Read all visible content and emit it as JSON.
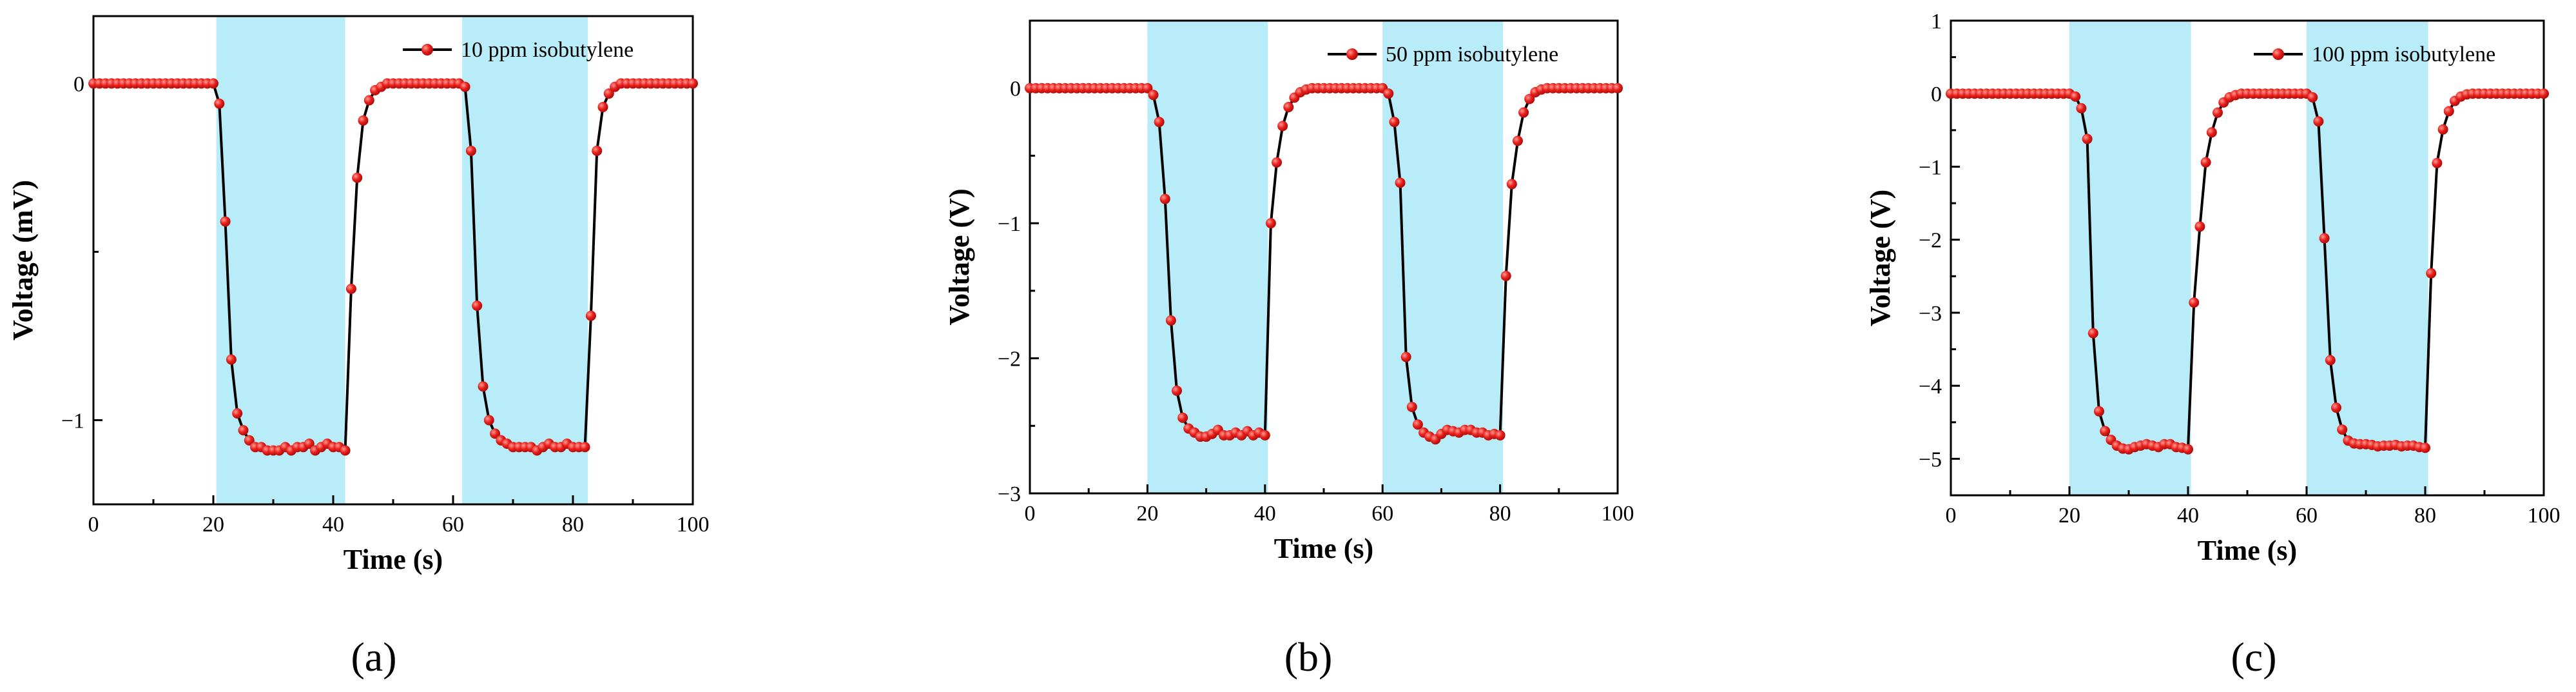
{
  "theme": {
    "line_color": "#000000",
    "marker_color": "#e8201c",
    "marker_highlight": "#ff9a92",
    "shade_color": "#b7ecf8",
    "axis_color": "#000000"
  },
  "panels": [
    {
      "label": "(a)"
    },
    {
      "label": "(b)"
    },
    {
      "label": "(c)"
    }
  ],
  "chart_data": [
    {
      "type": "line",
      "panel_label": "(a)",
      "xlabel": "Time (s)",
      "ylabel": "Voltage (mV)",
      "xlim": [
        0,
        100
      ],
      "ylim": [
        -1.25,
        0.2
      ],
      "xticks": [
        0,
        20,
        40,
        60,
        80,
        100
      ],
      "yticks": [
        0,
        -1
      ],
      "ytick_labels": [
        "0",
        "−1"
      ],
      "shaded_x_ranges": [
        [
          20.5,
          42.0
        ],
        [
          61.5,
          82.5
        ]
      ],
      "legend": {
        "position": "top-right",
        "entries": [
          "10 ppm isobutylene"
        ]
      },
      "series": [
        {
          "name": "10 ppm isobutylene",
          "x": [
            0,
            1,
            2,
            3,
            4,
            5,
            6,
            7,
            8,
            9,
            10,
            11,
            12,
            13,
            14,
            15,
            16,
            17,
            18,
            19,
            20,
            21,
            22,
            23,
            24,
            25,
            26,
            27,
            28,
            29,
            30,
            31,
            32,
            33,
            34,
            35,
            36,
            37,
            38,
            39,
            40,
            41,
            42,
            43,
            44,
            45,
            46,
            47,
            48,
            49,
            50,
            51,
            52,
            53,
            54,
            55,
            56,
            57,
            58,
            59,
            60,
            61,
            62,
            63,
            64,
            65,
            66,
            67,
            68,
            69,
            70,
            71,
            72,
            73,
            74,
            75,
            76,
            77,
            78,
            79,
            80,
            81,
            82,
            83,
            84,
            85,
            86,
            87,
            88,
            89,
            90,
            91,
            92,
            93,
            94,
            95,
            96,
            97,
            98,
            99,
            100
          ],
          "y": [
            0,
            0,
            0,
            0,
            0,
            0,
            0,
            0,
            0,
            0,
            0,
            0,
            0,
            0,
            0,
            0,
            0,
            0,
            0,
            0,
            0,
            -0.06,
            -0.41,
            -0.82,
            -0.98,
            -1.03,
            -1.06,
            -1.08,
            -1.08,
            -1.09,
            -1.09,
            -1.09,
            -1.08,
            -1.09,
            -1.08,
            -1.08,
            -1.07,
            -1.09,
            -1.08,
            -1.07,
            -1.08,
            -1.08,
            -1.09,
            -0.61,
            -0.28,
            -0.11,
            -0.05,
            -0.02,
            -0.01,
            0,
            0,
            0,
            0,
            0,
            0,
            0,
            0,
            0,
            0,
            0,
            0,
            0,
            -0.01,
            -0.2,
            -0.66,
            -0.9,
            -1.0,
            -1.04,
            -1.06,
            -1.07,
            -1.08,
            -1.08,
            -1.08,
            -1.08,
            -1.09,
            -1.08,
            -1.07,
            -1.08,
            -1.08,
            -1.07,
            -1.08,
            -1.08,
            -1.08,
            -0.69,
            -0.2,
            -0.07,
            -0.03,
            -0.01,
            0,
            0,
            0,
            0,
            0,
            0,
            0,
            0,
            0,
            0,
            0,
            0,
            0
          ]
        }
      ]
    },
    {
      "type": "line",
      "panel_label": "(b)",
      "xlabel": "Time (s)",
      "ylabel": "Voltage (V)",
      "xlim": [
        0,
        100
      ],
      "ylim": [
        -3.0,
        0.5
      ],
      "xticks": [
        0,
        20,
        40,
        60,
        80,
        100
      ],
      "yticks": [
        0,
        -1,
        -2,
        -3
      ],
      "ytick_labels": [
        "0",
        "−1",
        "−2",
        "−3"
      ],
      "shaded_x_ranges": [
        [
          20.0,
          40.5
        ],
        [
          60.0,
          80.5
        ]
      ],
      "legend": {
        "position": "top-right",
        "entries": [
          "50 ppm isobutylene"
        ]
      },
      "series": [
        {
          "name": "50 ppm isobutylene",
          "x": [
            0,
            1,
            2,
            3,
            4,
            5,
            6,
            7,
            8,
            9,
            10,
            11,
            12,
            13,
            14,
            15,
            16,
            17,
            18,
            19,
            20,
            21,
            22,
            23,
            24,
            25,
            26,
            27,
            28,
            29,
            30,
            31,
            32,
            33,
            34,
            35,
            36,
            37,
            38,
            39,
            40,
            41,
            42,
            43,
            44,
            45,
            46,
            47,
            48,
            49,
            50,
            51,
            52,
            53,
            54,
            55,
            56,
            57,
            58,
            59,
            60,
            61,
            62,
            63,
            64,
            65,
            66,
            67,
            68,
            69,
            70,
            71,
            72,
            73,
            74,
            75,
            76,
            77,
            78,
            79,
            80,
            81,
            82,
            83,
            84,
            85,
            86,
            87,
            88,
            89,
            90,
            91,
            92,
            93,
            94,
            95,
            96,
            97,
            98,
            99,
            100
          ],
          "y": [
            0,
            0,
            0,
            0,
            0,
            0,
            0,
            0,
            0,
            0,
            0,
            0,
            0,
            0,
            0,
            0,
            0,
            0,
            0,
            0,
            0,
            -0.05,
            -0.25,
            -0.82,
            -1.72,
            -2.24,
            -2.44,
            -2.52,
            -2.55,
            -2.58,
            -2.58,
            -2.56,
            -2.53,
            -2.57,
            -2.57,
            -2.55,
            -2.57,
            -2.54,
            -2.57,
            -2.55,
            -2.57,
            -1.0,
            -0.55,
            -0.28,
            -0.14,
            -0.07,
            -0.03,
            -0.01,
            0,
            0,
            0,
            0,
            0,
            0,
            0,
            0,
            0,
            0,
            0,
            0,
            0,
            -0.04,
            -0.25,
            -0.7,
            -1.99,
            -2.36,
            -2.49,
            -2.55,
            -2.58,
            -2.6,
            -2.56,
            -2.53,
            -2.54,
            -2.55,
            -2.53,
            -2.53,
            -2.55,
            -2.55,
            -2.57,
            -2.56,
            -2.57,
            -1.39,
            -0.71,
            -0.39,
            -0.18,
            -0.08,
            -0.03,
            -0.01,
            0,
            0,
            0,
            0,
            0,
            0,
            0,
            0,
            0,
            0,
            0,
            0,
            0
          ]
        }
      ]
    },
    {
      "type": "line",
      "panel_label": "(c)",
      "xlabel": "Time (s)",
      "ylabel": "Voltage (V)",
      "xlim": [
        0,
        100
      ],
      "ylim": [
        -5.5,
        1.0
      ],
      "xticks": [
        0,
        20,
        40,
        60,
        80,
        100
      ],
      "yticks": [
        1,
        0,
        -1,
        -2,
        -3,
        -4,
        -5
      ],
      "ytick_labels": [
        "1",
        "0",
        "−1",
        "−2",
        "−3",
        "−4",
        "−5"
      ],
      "shaded_x_ranges": [
        [
          20.0,
          40.5
        ],
        [
          60.0,
          80.5
        ]
      ],
      "legend": {
        "position": "top-right",
        "entries": [
          "100 ppm isobutylene"
        ]
      },
      "series": [
        {
          "name": "100 ppm isobutylene",
          "x": [
            0,
            1,
            2,
            3,
            4,
            5,
            6,
            7,
            8,
            9,
            10,
            11,
            12,
            13,
            14,
            15,
            16,
            17,
            18,
            19,
            20,
            21,
            22,
            23,
            24,
            25,
            26,
            27,
            28,
            29,
            30,
            31,
            32,
            33,
            34,
            35,
            36,
            37,
            38,
            39,
            40,
            41,
            42,
            43,
            44,
            45,
            46,
            47,
            48,
            49,
            50,
            51,
            52,
            53,
            54,
            55,
            56,
            57,
            58,
            59,
            60,
            61,
            62,
            63,
            64,
            65,
            66,
            67,
            68,
            69,
            70,
            71,
            72,
            73,
            74,
            75,
            76,
            77,
            78,
            79,
            80,
            81,
            82,
            83,
            84,
            85,
            86,
            87,
            88,
            89,
            90,
            91,
            92,
            93,
            94,
            95,
            96,
            97,
            98,
            99,
            100
          ],
          "y": [
            0,
            0,
            0,
            0,
            0,
            0,
            0,
            0,
            0,
            0,
            0,
            0,
            0,
            0,
            0,
            0,
            0,
            0,
            0,
            0,
            0,
            -0.04,
            -0.2,
            -0.62,
            -3.28,
            -4.35,
            -4.62,
            -4.74,
            -4.82,
            -4.86,
            -4.87,
            -4.84,
            -4.82,
            -4.8,
            -4.82,
            -4.84,
            -4.8,
            -4.8,
            -4.84,
            -4.85,
            -4.87,
            -2.86,
            -1.82,
            -0.94,
            -0.53,
            -0.26,
            -0.12,
            -0.05,
            -0.02,
            0,
            0,
            0,
            0,
            0,
            0,
            0,
            0,
            0,
            0,
            0,
            0,
            -0.05,
            -0.38,
            -1.98,
            -3.65,
            -4.3,
            -4.6,
            -4.75,
            -4.79,
            -4.8,
            -4.8,
            -4.81,
            -4.83,
            -4.82,
            -4.82,
            -4.81,
            -4.83,
            -4.82,
            -4.82,
            -4.84,
            -4.85,
            -2.46,
            -0.95,
            -0.49,
            -0.24,
            -0.1,
            -0.04,
            -0.01,
            0,
            0,
            0,
            0,
            0,
            0,
            0,
            0,
            0,
            0,
            0,
            0,
            0
          ]
        }
      ]
    }
  ]
}
